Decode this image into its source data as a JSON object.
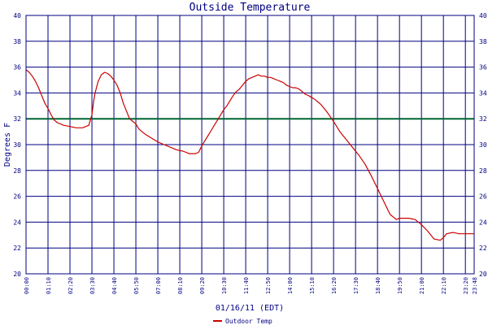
{
  "chart_data": {
    "type": "line",
    "title": "Outside Temperature",
    "xlabel": "01/16/11 (EDT)",
    "ylabel": "Degrees F",
    "ylim": [
      20,
      40
    ],
    "xlim": [
      0,
      1428
    ],
    "grid": true,
    "legend_position": "bottom-center",
    "x_tick_labels": [
      "00:00",
      "01:10",
      "02:20",
      "03:30",
      "04:40",
      "05:50",
      "07:00",
      "08:10",
      "09:20",
      "10:30",
      "11:40",
      "12:50",
      "14:00",
      "15:10",
      "16:20",
      "17:30",
      "18:40",
      "19:50",
      "21:00",
      "22:10",
      "23:20",
      "23:48"
    ],
    "x_tick_minutes": [
      0,
      70,
      140,
      210,
      280,
      350,
      420,
      490,
      560,
      630,
      700,
      770,
      840,
      910,
      980,
      1050,
      1120,
      1190,
      1260,
      1330,
      1400,
      1428
    ],
    "y_ticks": [
      20,
      22,
      24,
      26,
      28,
      30,
      32,
      34,
      36,
      38,
      40
    ],
    "reference_line": {
      "value": 32,
      "color": "#006633"
    },
    "series": [
      {
        "name": "Outdoor Temp",
        "color": "#cc0000",
        "x": [
          0,
          10,
          20,
          30,
          40,
          50,
          60,
          70,
          80,
          90,
          100,
          120,
          140,
          160,
          180,
          200,
          210,
          215,
          220,
          230,
          240,
          250,
          260,
          270,
          280,
          290,
          300,
          310,
          320,
          330,
          340,
          350,
          360,
          380,
          400,
          420,
          440,
          460,
          480,
          500,
          520,
          540,
          550,
          560,
          570,
          580,
          590,
          600,
          610,
          620,
          630,
          640,
          650,
          660,
          670,
          680,
          690,
          700,
          710,
          720,
          730,
          740,
          750,
          760,
          770,
          780,
          790,
          800,
          810,
          820,
          830,
          840,
          850,
          860,
          870,
          880,
          890,
          900,
          920,
          940,
          960,
          980,
          1000,
          1020,
          1040,
          1060,
          1080,
          1100,
          1120,
          1140,
          1160,
          1180,
          1190,
          1200,
          1220,
          1240,
          1260,
          1280,
          1300,
          1320,
          1330,
          1340,
          1360,
          1380,
          1400,
          1428
        ],
        "y": [
          35.8,
          35.6,
          35.3,
          34.9,
          34.4,
          33.8,
          33.2,
          32.8,
          32.3,
          31.9,
          31.7,
          31.5,
          31.4,
          31.3,
          31.3,
          31.5,
          32.3,
          33.3,
          34.0,
          34.9,
          35.4,
          35.6,
          35.5,
          35.3,
          35.0,
          34.6,
          34.0,
          33.2,
          32.6,
          32.0,
          31.8,
          31.6,
          31.2,
          30.8,
          30.5,
          30.2,
          30.0,
          29.8,
          29.6,
          29.5,
          29.3,
          29.3,
          29.4,
          29.9,
          30.3,
          30.7,
          31.1,
          31.5,
          31.9,
          32.3,
          32.7,
          33.0,
          33.4,
          33.8,
          34.1,
          34.3,
          34.6,
          34.9,
          35.1,
          35.2,
          35.3,
          35.4,
          35.3,
          35.3,
          35.2,
          35.2,
          35.1,
          35.0,
          34.9,
          34.8,
          34.6,
          34.5,
          34.4,
          34.4,
          34.3,
          34.1,
          33.9,
          33.8,
          33.5,
          33.1,
          32.5,
          31.8,
          31.0,
          30.4,
          29.8,
          29.2,
          28.5,
          27.6,
          26.6,
          25.6,
          24.6,
          24.2,
          24.3,
          24.3,
          24.3,
          24.2,
          23.8,
          23.3,
          22.7,
          22.6,
          22.8,
          23.1,
          23.2,
          23.1,
          23.1,
          23.1
        ]
      }
    ]
  }
}
